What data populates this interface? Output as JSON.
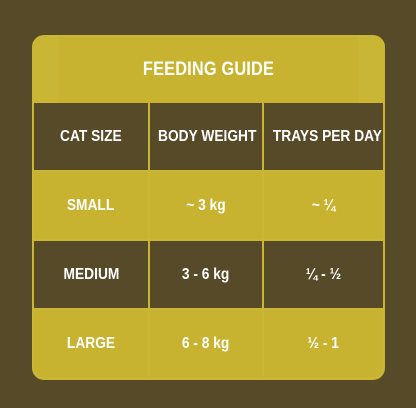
{
  "title": "FEEDING GUIDE",
  "headers": [
    "CAT SIZE",
    "BODY WEIGHT",
    "TRAYS PER DAY"
  ],
  "rows": [
    [
      "SMALL",
      "~ 3 kg",
      "~ ¼"
    ],
    [
      "MEDIUM",
      "3 - 6 kg",
      "¼ - ½"
    ],
    [
      "LARGE",
      "6 - 8 kg",
      "½ - 1"
    ]
  ],
  "colors": {
    "background": "#574a28",
    "gold": "#c7b32f",
    "text": "#ffffff"
  }
}
